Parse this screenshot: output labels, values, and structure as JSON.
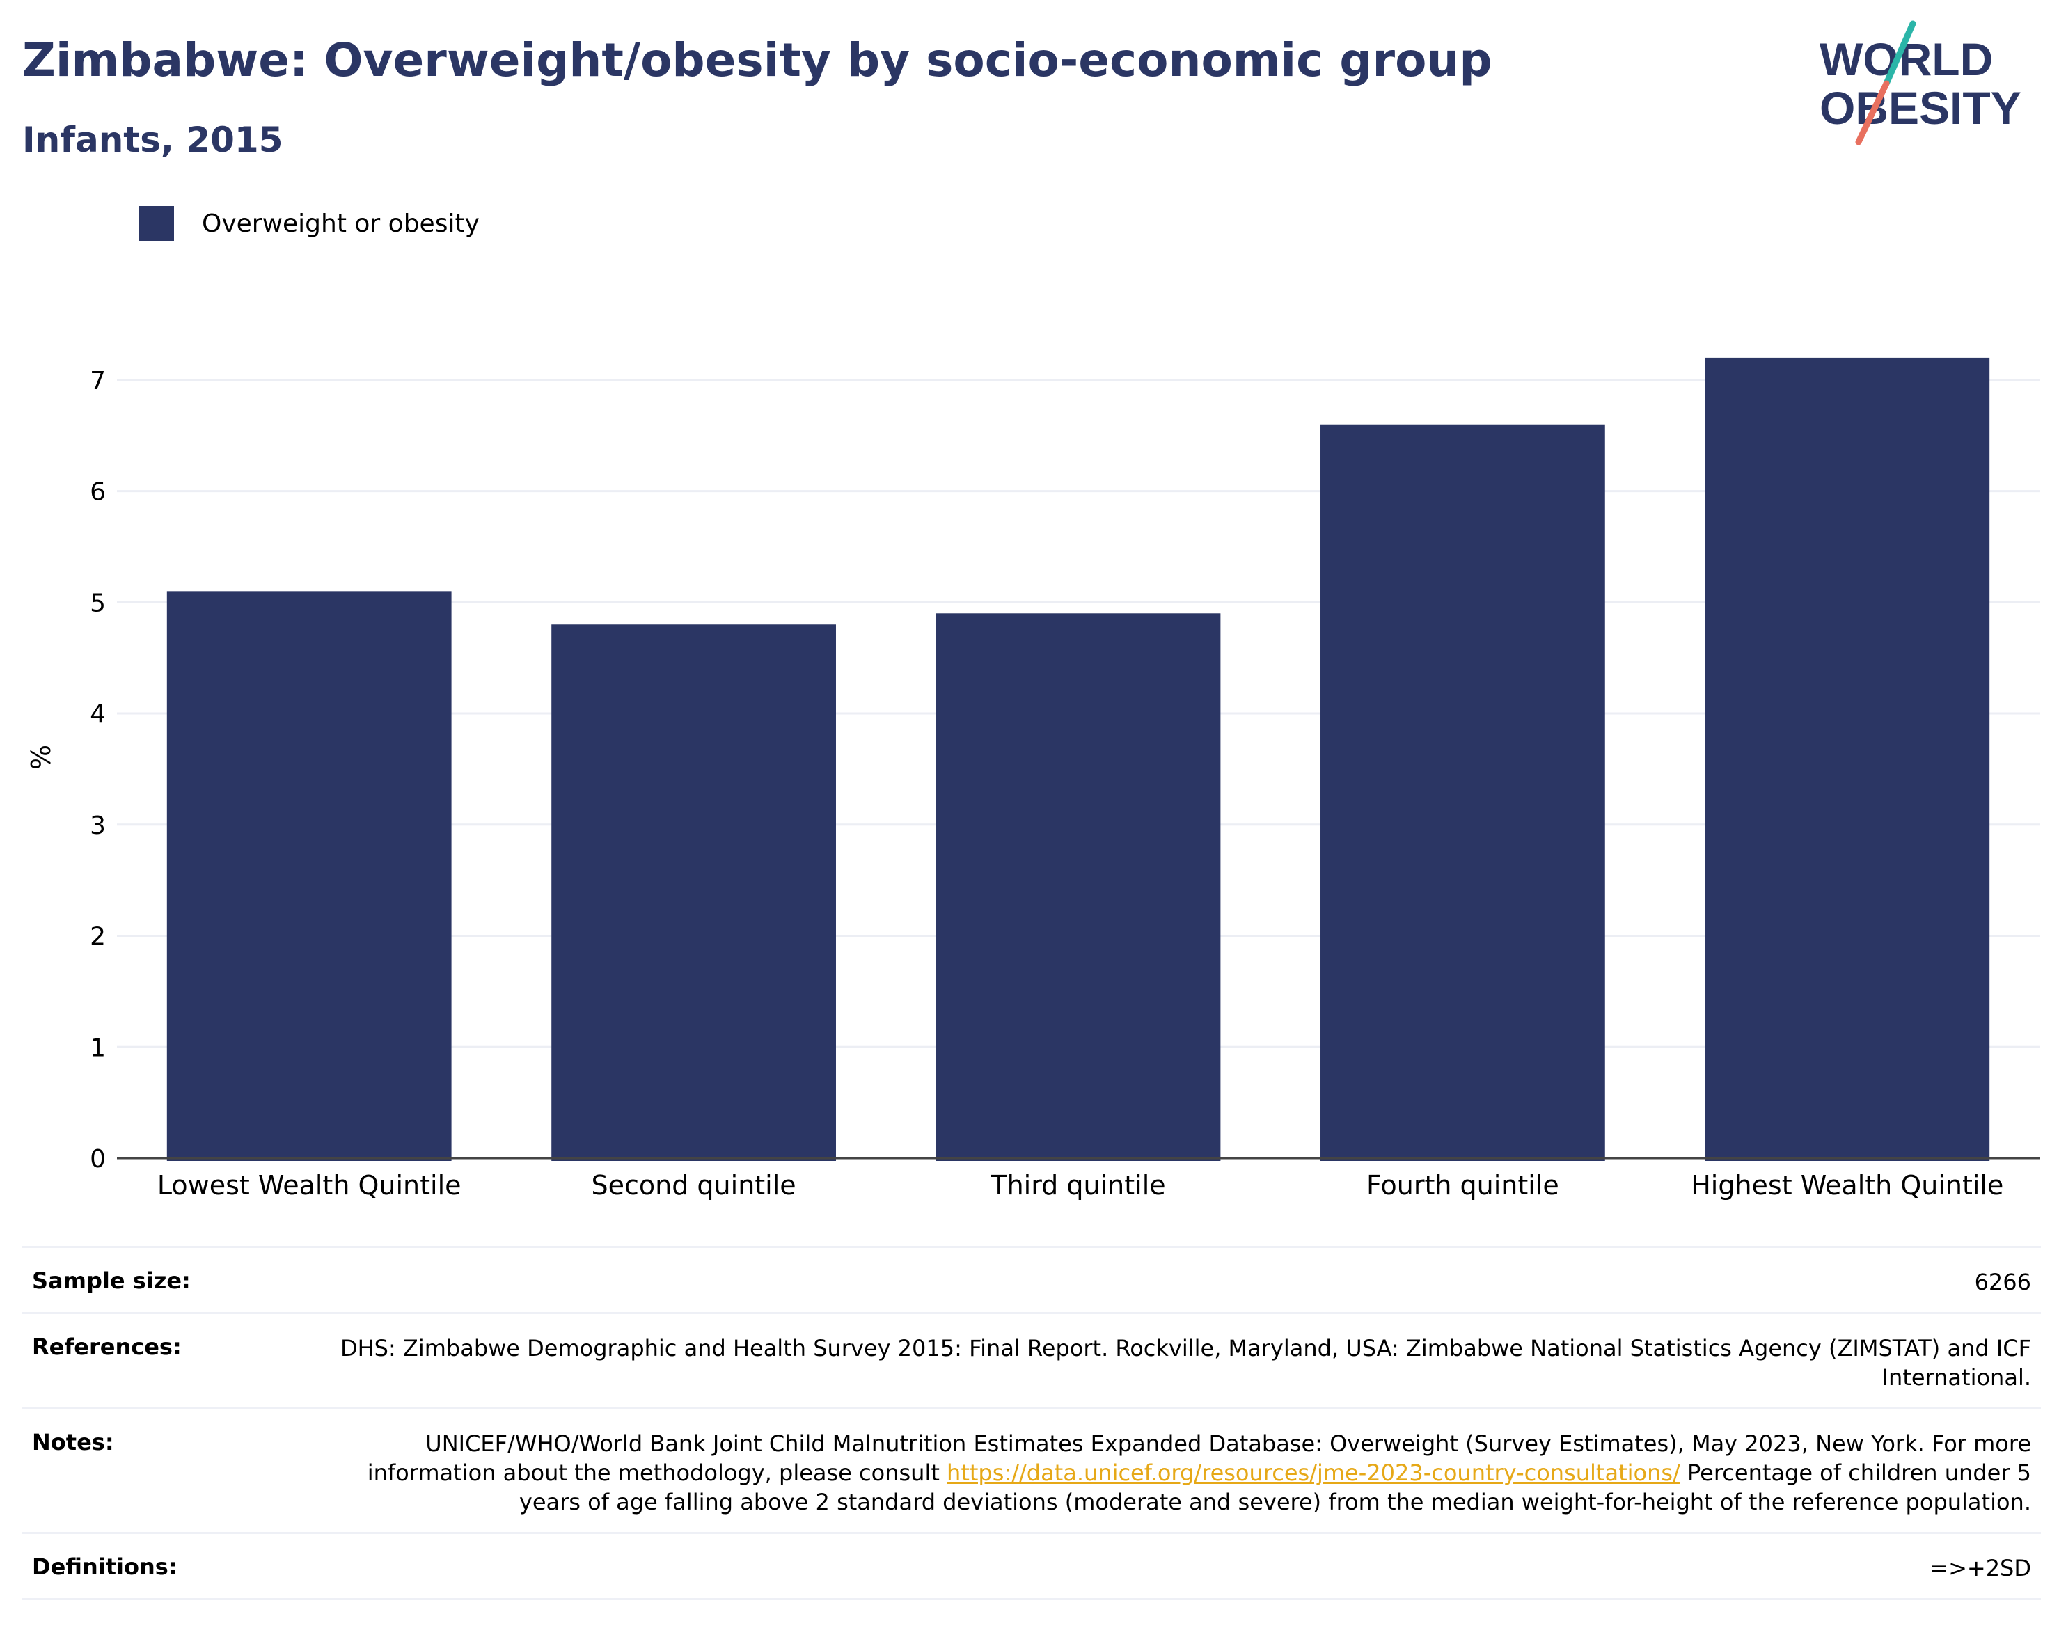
{
  "title": "Zimbabwe: Overweight/obesity by socio-economic group",
  "subtitle": "Infants, 2015",
  "logo": {
    "line1": "WORLD",
    "line2": "OBESITY"
  },
  "colors": {
    "bar": "#2b3664",
    "title": "#2b3664",
    "link": "#e6a817",
    "logo_teal": "#2bb5a8",
    "logo_coral": "#e8705f"
  },
  "chart_data": {
    "type": "bar",
    "categories": [
      "Lowest Wealth Quintile",
      "Second quintile",
      "Third quintile",
      "Fourth quintile",
      "Highest Wealth Quintile"
    ],
    "series": [
      {
        "name": "Overweight or obesity",
        "values": [
          5.1,
          4.8,
          4.9,
          6.6,
          7.2
        ]
      }
    ],
    "ylabel": "%",
    "ylim": [
      0,
      7.6
    ],
    "yticks": [
      0,
      1,
      2,
      3,
      4,
      5,
      6,
      7
    ],
    "grid": true,
    "legend_position": "top-left"
  },
  "meta": {
    "sample_size_label": "Sample size:",
    "sample_size_value": "6266",
    "references_label": "References:",
    "references_value": "DHS: Zimbabwe Demographic and Health Survey 2015: Final Report. Rockville, Maryland, USA: Zimbabwe National Statistics Agency (ZIMSTAT) and ICF International.",
    "notes_label": "Notes:",
    "notes_text_1": "UNICEF/WHO/World Bank Joint Child Malnutrition Estimates Expanded Database: Overweight (Survey Estimates), May 2023, New York. For more information about the methodology, please consult ",
    "notes_link": "https://data.unicef.org/resources/jme-2023-country-consultations/",
    "notes_text_2": " Percentage of children under 5 years of age falling above 2 standard deviations (moderate and severe) from the median weight-for-height of the reference population.",
    "definitions_label": "Definitions:",
    "definitions_value": "=>+2SD"
  }
}
